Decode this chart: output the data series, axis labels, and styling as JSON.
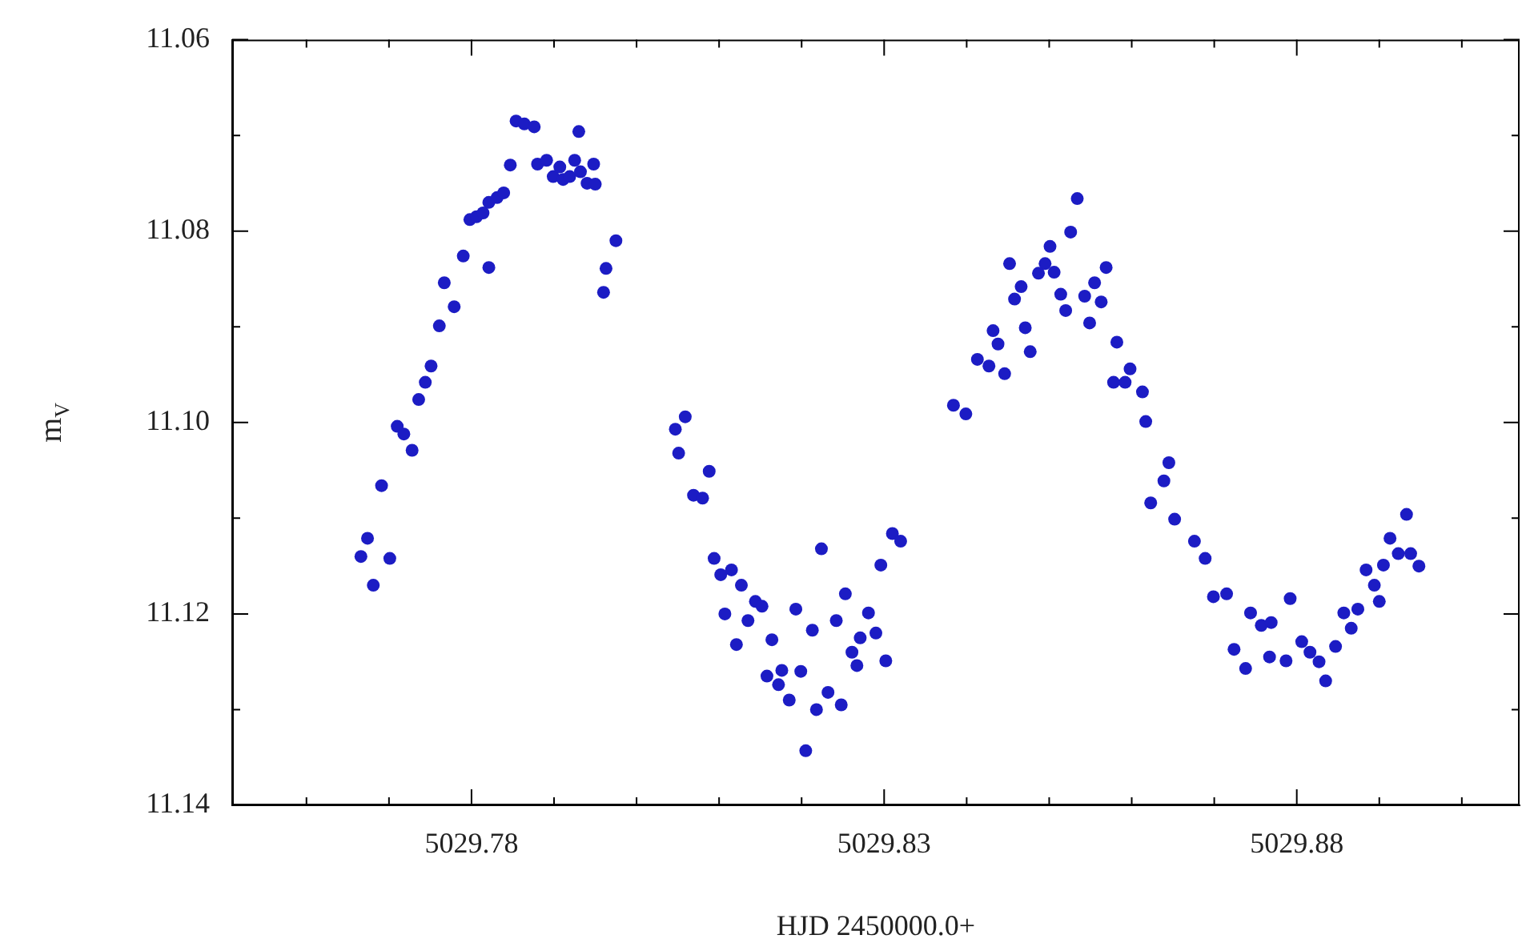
{
  "chart_data": {
    "type": "scatter",
    "xlabel": "HJD 2450000.0+",
    "ylabel": "m$_{V}$",
    "marker": "circle",
    "grid": false,
    "legend": false,
    "xlim": [
      5029.751,
      5029.907
    ],
    "ylim": [
      11.14,
      11.06
    ],
    "xticks": [
      {
        "value": 5029.76,
        "label": null
      },
      {
        "value": 5029.77,
        "label": null
      },
      {
        "value": 5029.78,
        "label": "5029.78"
      },
      {
        "value": 5029.79,
        "label": null
      },
      {
        "value": 5029.8,
        "label": null
      },
      {
        "value": 5029.81,
        "label": null
      },
      {
        "value": 5029.82,
        "label": null
      },
      {
        "value": 5029.83,
        "label": "5029.83"
      },
      {
        "value": 5029.84,
        "label": null
      },
      {
        "value": 5029.85,
        "label": null
      },
      {
        "value": 5029.86,
        "label": null
      },
      {
        "value": 5029.87,
        "label": null
      },
      {
        "value": 5029.88,
        "label": "5029.88"
      },
      {
        "value": 5029.89,
        "label": null
      },
      {
        "value": 5029.9,
        "label": null
      }
    ],
    "yticks": [
      {
        "value": 11.06,
        "label": "11.06"
      },
      {
        "value": 11.07,
        "label": null
      },
      {
        "value": 11.08,
        "label": "11.08"
      },
      {
        "value": 11.09,
        "label": null
      },
      {
        "value": 11.1,
        "label": "11.10"
      },
      {
        "value": 11.11,
        "label": null
      },
      {
        "value": 11.12,
        "label": "11.12"
      },
      {
        "value": 11.13,
        "label": null
      },
      {
        "value": 11.14,
        "label": "11.14"
      }
    ],
    "series": [
      {
        "color": "#1c1cc4",
        "x": [
          5029.7666,
          5029.7674,
          5029.7681,
          5029.7701,
          5029.7691,
          5029.771,
          5029.7718,
          5029.7728,
          5029.7736,
          5029.7744,
          5029.7751,
          5029.7761,
          5029.7767,
          5029.7779,
          5029.779,
          5029.7798,
          5029.7806,
          5029.7814,
          5029.7821,
          5029.7821,
          5029.7831,
          5029.7839,
          5029.7847,
          5029.7854,
          5029.7864,
          5029.7876,
          5029.788,
          5029.7891,
          5029.7899,
          5029.7907,
          5029.7911,
          5029.7919,
          5029.7925,
          5029.793,
          5029.7932,
          5029.794,
          5029.7948,
          5029.795,
          5029.796,
          5029.7963,
          5029.7975,
          5029.8059,
          5029.8047,
          5029.8051,
          5029.8088,
          5029.8069,
          5029.808,
          5029.8094,
          5029.8102,
          5029.8115,
          5029.8127,
          5029.8144,
          5029.8107,
          5029.8135,
          5029.8152,
          5029.8121,
          5029.8164,
          5029.8193,
          5029.8213,
          5029.8224,
          5029.8158,
          5029.8176,
          5029.8199,
          5029.8172,
          5029.8185,
          5029.8218,
          5029.8232,
          5029.8248,
          5029.8205,
          5029.8242,
          5029.8253,
          5029.8281,
          5029.8271,
          5029.829,
          5029.8261,
          5029.8267,
          5029.8302,
          5029.8296,
          5029.831,
          5029.832,
          5029.8534,
          5029.8526,
          5029.8501,
          5029.8452,
          5029.8495,
          5029.8487,
          5029.8506,
          5029.8466,
          5029.8458,
          5029.8514,
          5029.852,
          5029.8543,
          5029.8555,
          5029.8569,
          5029.8563,
          5029.8549,
          5029.8471,
          5029.8432,
          5029.8438,
          5029.8413,
          5029.8427,
          5029.8446,
          5029.8477,
          5029.8384,
          5029.8399,
          5029.8582,
          5029.8598,
          5029.8578,
          5029.8592,
          5029.8613,
          5029.8617,
          5029.8645,
          5029.8639,
          5029.8623,
          5029.8652,
          5029.8676,
          5029.8689,
          5029.8699,
          5029.8715,
          5029.8744,
          5029.8757,
          5029.8724,
          5029.8738,
          5029.8769,
          5029.8792,
          5029.8767,
          5029.8787,
          5029.8806,
          5029.8816,
          5029.8827,
          5029.8835,
          5029.8847,
          5029.8857,
          5029.8874,
          5029.8866,
          5029.8884,
          5029.8894,
          5029.89,
          5029.8905,
          5029.8913,
          5029.8923,
          5029.8938,
          5029.8948,
          5029.8933
        ],
        "values": [
          11.114,
          11.1121,
          11.117,
          11.1142,
          11.1066,
          11.1004,
          11.1012,
          11.1029,
          11.0976,
          11.0958,
          11.0941,
          11.0899,
          11.0854,
          11.0879,
          11.0826,
          11.0788,
          11.0785,
          11.0781,
          11.0838,
          11.077,
          11.0765,
          11.076,
          11.0731,
          11.0685,
          11.0688,
          11.0691,
          11.073,
          11.0726,
          11.0743,
          11.0733,
          11.0746,
          11.0743,
          11.0726,
          11.0696,
          11.0738,
          11.075,
          11.073,
          11.0751,
          11.0864,
          11.0839,
          11.081,
          11.0994,
          11.1007,
          11.1032,
          11.1051,
          11.1076,
          11.1079,
          11.1142,
          11.1159,
          11.1154,
          11.117,
          11.1187,
          11.12,
          11.1207,
          11.1192,
          11.1232,
          11.1227,
          11.1195,
          11.1217,
          11.1132,
          11.1265,
          11.1259,
          11.126,
          11.1274,
          11.129,
          11.13,
          11.1282,
          11.1295,
          11.1343,
          11.1207,
          11.1179,
          11.1199,
          11.1225,
          11.122,
          11.124,
          11.1254,
          11.1249,
          11.1149,
          11.1116,
          11.1124,
          11.0766,
          11.0801,
          11.0816,
          11.0834,
          11.0834,
          11.0844,
          11.0843,
          11.0858,
          11.0871,
          11.0866,
          11.0883,
          11.0868,
          11.0854,
          11.0838,
          11.0874,
          11.0896,
          11.0901,
          11.0904,
          11.0918,
          11.0934,
          11.0941,
          11.0949,
          11.0926,
          11.0982,
          11.0991,
          11.0916,
          11.0944,
          11.0958,
          11.0958,
          11.0968,
          11.0999,
          11.1042,
          11.1061,
          11.1084,
          11.1101,
          11.1124,
          11.1142,
          11.1182,
          11.1179,
          11.1199,
          11.1212,
          11.1237,
          11.1257,
          11.1209,
          11.1184,
          11.1245,
          11.1249,
          11.1229,
          11.124,
          11.125,
          11.127,
          11.1234,
          11.1199,
          11.1195,
          11.1215,
          11.1154,
          11.117,
          11.1187,
          11.1149,
          11.1121,
          11.1137,
          11.1137,
          11.115,
          11.1096
        ]
      }
    ]
  }
}
